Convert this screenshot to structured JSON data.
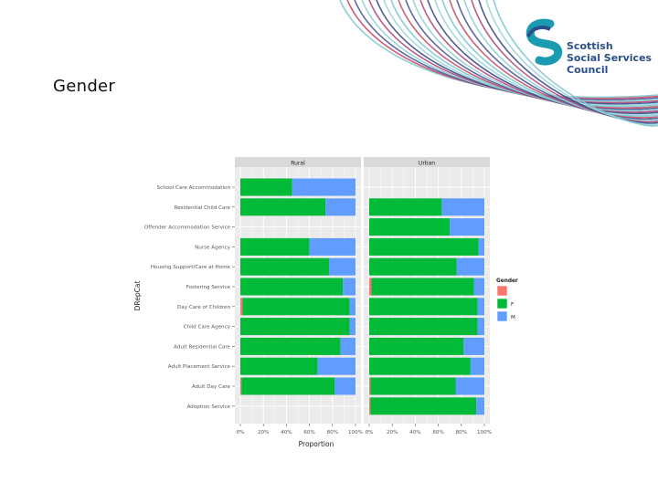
{
  "slide": {
    "title": "Gender"
  },
  "logo": {
    "line1": "Scottish",
    "line2": "Social Services",
    "line3": "Council",
    "color": "#2a4f8a"
  },
  "chart_data": {
    "type": "bar",
    "orientation": "horizontal",
    "stacked": true,
    "xlabel": "Proportion",
    "ylabel": "DRepCat",
    "xlim": [
      0,
      1
    ],
    "x_ticks": [
      "0%",
      "20%",
      "40%",
      "60%",
      "80%",
      "100%"
    ],
    "legend": {
      "title": "Gender",
      "placement": "right",
      "entries": [
        {
          "label": "F",
          "color": "#00ba38"
        },
        {
          "label": "F",
          "color": "#00ba38"
        },
        {
          "label": "M",
          "color": "#619cff"
        }
      ]
    },
    "colors": {
      "F0": "#f8766d",
      "F": "#00ba38",
      "M": "#619cff"
    },
    "categories": [
      "School Care Accommodation",
      "Residential Child Care",
      "Offender Accommodation Service",
      "Nurse Agency",
      "Housing Support/Care at Home",
      "Fostering Service",
      "Day Care of Children",
      "Child Care Agency",
      "Adult Residential Care",
      "Adult Placement Service",
      "Adult Day Care",
      "Adoption Service"
    ],
    "panels": [
      {
        "label": "Rural",
        "bars": [
          [
            0,
            0.45,
            0.55
          ],
          [
            0,
            0.74,
            0.26
          ],
          null,
          [
            0,
            0.6,
            0.4
          ],
          [
            0,
            0.77,
            0.23
          ],
          [
            0,
            0.89,
            0.11
          ],
          [
            0.02,
            0.93,
            0.05
          ],
          [
            0,
            0.95,
            0.05
          ],
          [
            0,
            0.87,
            0.13
          ],
          [
            0,
            0.67,
            0.33
          ],
          [
            0.01,
            0.81,
            0.18
          ],
          null
        ]
      },
      {
        "label": "Urban",
        "bars": [
          null,
          [
            0,
            0.63,
            0.37
          ],
          [
            0,
            0.7,
            0.3
          ],
          [
            0,
            0.95,
            0.05
          ],
          [
            0,
            0.76,
            0.24
          ],
          [
            0.02,
            0.89,
            0.09
          ],
          [
            0,
            0.94,
            0.06
          ],
          [
            0,
            0.94,
            0.06
          ],
          [
            0,
            0.82,
            0.18
          ],
          [
            0,
            0.88,
            0.12
          ],
          [
            0.01,
            0.74,
            0.25
          ],
          [
            0.01,
            0.92,
            0.07
          ]
        ]
      }
    ]
  }
}
